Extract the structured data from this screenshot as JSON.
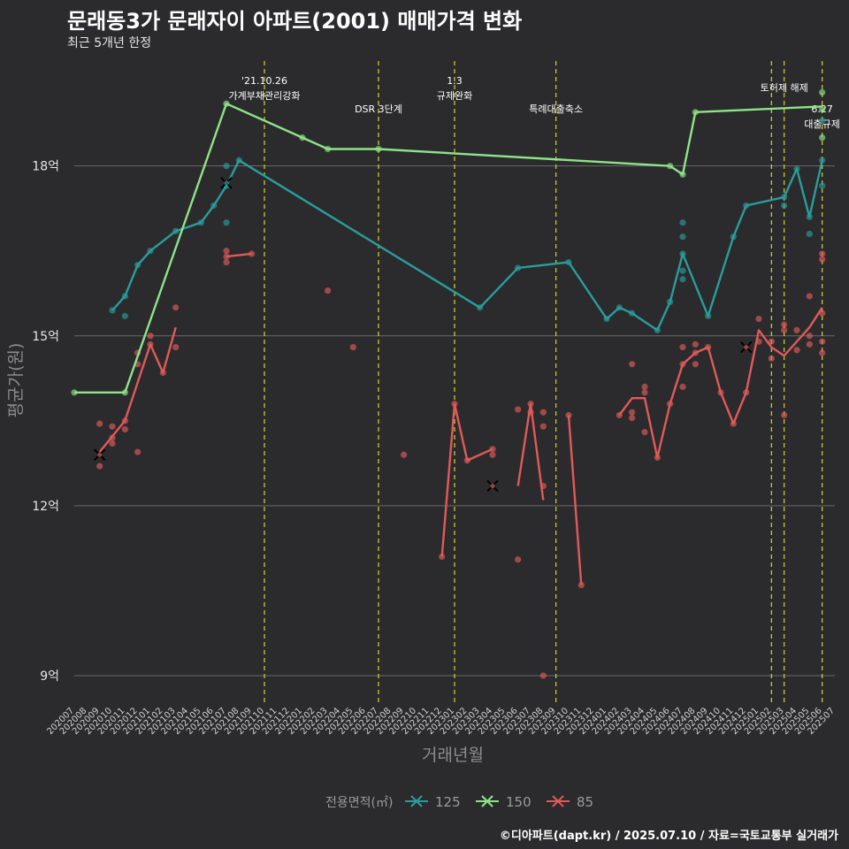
{
  "title": "문래동3가 문래자이 아파트(2001) 매매가격 변화",
  "subtitle": "최근 5개년 한정",
  "caption": "©디아파트(dapt.kr) / 2025.07.10 / 자료=국토교통부 실거래가",
  "chart_data": {
    "type": "line",
    "xlabel": "거래년월",
    "ylabel": "평균가(원)",
    "ylim": [
      8.5,
      19.9
    ],
    "grid": true,
    "yticks": [
      {
        "value": 9,
        "label": "9억"
      },
      {
        "value": 12,
        "label": "12억"
      },
      {
        "value": 15,
        "label": "15억"
      },
      {
        "value": 18,
        "label": "18억"
      }
    ],
    "categories": [
      "202007",
      "202008",
      "202009",
      "202010",
      "202011",
      "202012",
      "202101",
      "202102",
      "202103",
      "202104",
      "202105",
      "202106",
      "202107",
      "202108",
      "202109",
      "202110",
      "202111",
      "202112",
      "202201",
      "202202",
      "202203",
      "202204",
      "202205",
      "202206",
      "202207",
      "202208",
      "202209",
      "202210",
      "202211",
      "202212",
      "202301",
      "202302",
      "202303",
      "202304",
      "202305",
      "202306",
      "202307",
      "202308",
      "202309",
      "202310",
      "202311",
      "202312",
      "202401",
      "202402",
      "202403",
      "202404",
      "202405",
      "202406",
      "202407",
      "202408",
      "202409",
      "202410",
      "202411",
      "202412",
      "202501",
      "202502",
      "202503",
      "202504",
      "202505",
      "202506",
      "202507"
    ],
    "legend": {
      "title": "전용면적(㎡)",
      "position": "bottom"
    },
    "series": [
      {
        "name": "125",
        "color": "#2a9d9b",
        "line": [
          [
            "202010",
            15.45
          ],
          [
            "202011",
            15.7
          ],
          [
            "202012",
            16.25
          ],
          [
            "202101",
            16.5
          ],
          [
            "202103",
            16.85
          ],
          [
            "202105",
            17.0
          ],
          [
            "202106",
            17.3
          ],
          [
            "202107",
            17.65
          ],
          [
            "202108",
            18.1
          ],
          [
            "202303",
            15.5
          ],
          [
            "202306",
            16.2
          ],
          [
            "202310",
            16.3
          ],
          [
            "202401",
            15.3
          ],
          [
            "202402",
            15.5
          ],
          [
            "202403",
            15.4
          ],
          [
            "202405",
            15.1
          ],
          [
            "202406",
            15.6
          ],
          [
            "202407",
            16.45
          ],
          [
            "202409",
            15.35
          ],
          [
            "202411",
            16.75
          ],
          [
            "202412",
            17.3
          ],
          [
            "202503",
            17.45
          ],
          [
            "202504",
            17.95
          ],
          [
            "202505",
            17.1
          ],
          [
            "202506",
            18.1
          ]
        ],
        "points": [
          [
            "202010",
            15.45
          ],
          [
            "202011",
            15.7
          ],
          [
            "202011",
            15.35
          ],
          [
            "202012",
            16.25
          ],
          [
            "202101",
            16.5
          ],
          [
            "202103",
            16.85
          ],
          [
            "202105",
            17.0
          ],
          [
            "202106",
            17.3
          ],
          [
            "202107",
            17.65
          ],
          [
            "202107",
            18.0
          ],
          [
            "202107",
            17.0
          ],
          [
            "202108",
            18.1
          ],
          [
            "202303",
            15.5
          ],
          [
            "202306",
            16.2
          ],
          [
            "202310",
            16.3
          ],
          [
            "202401",
            15.3
          ],
          [
            "202402",
            15.5
          ],
          [
            "202403",
            15.4
          ],
          [
            "202405",
            15.1
          ],
          [
            "202406",
            15.6
          ],
          [
            "202407",
            16.45
          ],
          [
            "202407",
            16.15
          ],
          [
            "202407",
            16.0
          ],
          [
            "202407",
            16.75
          ],
          [
            "202407",
            17.0
          ],
          [
            "202409",
            15.35
          ],
          [
            "202411",
            16.75
          ],
          [
            "202412",
            17.3
          ],
          [
            "202503",
            17.45
          ],
          [
            "202503",
            17.3
          ],
          [
            "202504",
            17.95
          ],
          [
            "202505",
            17.1
          ],
          [
            "202505",
            16.8
          ],
          [
            "202506",
            18.1
          ],
          [
            "202506",
            17.65
          ],
          [
            "202506",
            18.8
          ]
        ],
        "cancelled": [
          [
            "202107",
            17.7
          ]
        ]
      },
      {
        "name": "150",
        "color": "#8fe388",
        "line": [
          [
            "202007",
            14.0
          ],
          [
            "202011",
            14.0
          ],
          [
            "202107",
            19.1
          ],
          [
            "202201",
            18.5
          ],
          [
            "202203",
            18.3
          ],
          [
            "202207",
            18.3
          ],
          [
            "202406",
            18.0
          ],
          [
            "202407",
            17.85
          ],
          [
            "202408",
            18.95
          ],
          [
            "202506",
            19.05
          ]
        ],
        "points": [
          [
            "202007",
            14.0
          ],
          [
            "202011",
            14.0
          ],
          [
            "202107",
            19.1
          ],
          [
            "202201",
            18.5
          ],
          [
            "202203",
            18.3
          ],
          [
            "202207",
            18.3
          ],
          [
            "202406",
            18.0
          ],
          [
            "202407",
            17.85
          ],
          [
            "202408",
            18.95
          ],
          [
            "202506",
            19.0
          ],
          [
            "202506",
            18.5
          ],
          [
            "202506",
            19.3
          ]
        ],
        "cancelled": []
      },
      {
        "name": "85",
        "color": "#e05a5a",
        "line_segments": [
          [
            [
              "202009",
              12.95
            ],
            [
              "202011",
              13.5
            ],
            [
              "202101",
              14.85
            ],
            [
              "202102",
              14.35
            ],
            [
              "202103",
              15.15
            ]
          ],
          [
            [
              "202107",
              16.4
            ],
            [
              "202109",
              16.45
            ]
          ],
          [
            [
              "202212",
              11.1
            ],
            [
              "202301",
              13.8
            ],
            [
              "202302",
              12.8
            ],
            [
              "202304",
              13.0
            ]
          ],
          [
            [
              "202306",
              12.35
            ],
            [
              "202307",
              13.8
            ],
            [
              "202308",
              12.1
            ]
          ],
          [
            [
              "202310",
              13.6
            ],
            [
              "202311",
              10.6
            ]
          ],
          [
            [
              "202402",
              13.6
            ],
            [
              "202403",
              13.9
            ],
            [
              "202404",
              13.9
            ],
            [
              "202405",
              12.85
            ],
            [
              "202406",
              13.8
            ],
            [
              "202407",
              14.5
            ],
            [
              "202408",
              14.7
            ],
            [
              "202409",
              14.8
            ],
            [
              "202410",
              14.0
            ],
            [
              "202411",
              13.45
            ],
            [
              "202412",
              14.0
            ],
            [
              "202501",
              15.1
            ],
            [
              "202502",
              14.8
            ],
            [
              "202503",
              14.65
            ],
            [
              "202505",
              15.15
            ],
            [
              "202506",
              15.5
            ]
          ]
        ],
        "points": [
          [
            "202009",
            13.45
          ],
          [
            "202009",
            12.7
          ],
          [
            "202010",
            13.4
          ],
          [
            "202010",
            13.2
          ],
          [
            "202010",
            13.1
          ],
          [
            "202011",
            13.35
          ],
          [
            "202011",
            13.5
          ],
          [
            "202012",
            14.7
          ],
          [
            "202012",
            14.5
          ],
          [
            "202012",
            12.95
          ],
          [
            "202101",
            14.85
          ],
          [
            "202101",
            15.0
          ],
          [
            "202102",
            14.35
          ],
          [
            "202103",
            15.5
          ],
          [
            "202103",
            14.8
          ],
          [
            "202107",
            16.4
          ],
          [
            "202107",
            16.5
          ],
          [
            "202107",
            16.3
          ],
          [
            "202109",
            16.45
          ],
          [
            "202203",
            15.8
          ],
          [
            "202205",
            14.8
          ],
          [
            "202209",
            12.9
          ],
          [
            "202212",
            11.1
          ],
          [
            "202301",
            13.8
          ],
          [
            "202302",
            12.8
          ],
          [
            "202304",
            13.0
          ],
          [
            "202304",
            12.9
          ],
          [
            "202306",
            13.7
          ],
          [
            "202306",
            11.05
          ],
          [
            "202307",
            13.8
          ],
          [
            "202307",
            13.65
          ],
          [
            "202308",
            13.4
          ],
          [
            "202308",
            13.65
          ],
          [
            "202308",
            12.35
          ],
          [
            "202308",
            9.0
          ],
          [
            "202310",
            13.6
          ],
          [
            "202311",
            10.6
          ],
          [
            "202402",
            13.6
          ],
          [
            "202403",
            13.55
          ],
          [
            "202403",
            13.65
          ],
          [
            "202403",
            14.5
          ],
          [
            "202404",
            14.1
          ],
          [
            "202404",
            14.0
          ],
          [
            "202404",
            13.3
          ],
          [
            "202405",
            12.85
          ],
          [
            "202406",
            13.8
          ],
          [
            "202407",
            14.8
          ],
          [
            "202407",
            14.5
          ],
          [
            "202407",
            14.1
          ],
          [
            "202408",
            14.85
          ],
          [
            "202408",
            14.5
          ],
          [
            "202408",
            14.7
          ],
          [
            "202409",
            14.8
          ],
          [
            "202410",
            14.0
          ],
          [
            "202411",
            13.45
          ],
          [
            "202412",
            14.0
          ],
          [
            "202501",
            15.3
          ],
          [
            "202501",
            14.9
          ],
          [
            "202502",
            14.6
          ],
          [
            "202502",
            14.9
          ],
          [
            "202503",
            15.2
          ],
          [
            "202503",
            15.1
          ],
          [
            "202503",
            13.6
          ],
          [
            "202504",
            15.1
          ],
          [
            "202504",
            14.75
          ],
          [
            "202505",
            15.7
          ],
          [
            "202505",
            15.0
          ],
          [
            "202505",
            14.85
          ],
          [
            "202506",
            16.45
          ],
          [
            "202506",
            16.35
          ],
          [
            "202506",
            15.4
          ],
          [
            "202506",
            14.9
          ],
          [
            "202506",
            14.7
          ]
        ],
        "cancelled": [
          [
            "202009",
            12.9
          ],
          [
            "202304",
            12.35
          ],
          [
            "202412",
            14.8
          ]
        ]
      }
    ],
    "annotations": [
      {
        "x": "202110",
        "lines": [
          "'21.10.26",
          "가계부채관리강화"
        ],
        "tier": "high"
      },
      {
        "x": "202207",
        "lines": [
          "DSR 3단계"
        ],
        "tier": "low"
      },
      {
        "x": "202301",
        "lines": [
          "1.3",
          "규제완화"
        ],
        "tier": "high"
      },
      {
        "x": "202309",
        "lines": [
          "특례대출축소"
        ],
        "tier": "low"
      },
      {
        "x": "202502",
        "lines": [],
        "tier": "high"
      },
      {
        "x": "202503",
        "lines": [
          "토허제 해제"
        ],
        "tier": "top"
      },
      {
        "x": "202506",
        "lines": [
          "6.27",
          "대출규제"
        ],
        "tier": "low"
      }
    ]
  }
}
